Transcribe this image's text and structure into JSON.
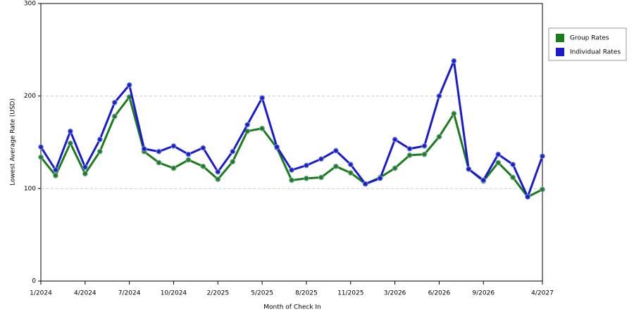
{
  "chart_data": {
    "type": "line",
    "x_label": "Month of Check In",
    "y_label": "Lowest Average Rate (USD)",
    "categories": [
      "1/2024",
      null,
      null,
      "4/2024",
      null,
      null,
      "7/2024",
      null,
      null,
      "10/2024",
      null,
      null,
      "2/2025",
      null,
      null,
      "5/2025",
      null,
      null,
      "8/2025",
      null,
      null,
      "11/2025",
      null,
      null,
      "3/2026",
      null,
      null,
      "6/2026",
      null,
      null,
      "9/2026",
      null,
      null,
      null,
      "4/2027"
    ],
    "series": [
      {
        "name": "Group Rates",
        "color": "#1a7d1a",
        "values": [
          134,
          114,
          149,
          116,
          140,
          178,
          199,
          140,
          128,
          122,
          131,
          124,
          110,
          129,
          162,
          165,
          144,
          109,
          111,
          112,
          124,
          117,
          105,
          112,
          122,
          136,
          137,
          156,
          181,
          121,
          108,
          128,
          112,
          91,
          99
        ]
      },
      {
        "name": "Individual Rates",
        "color": "#1a1ad2",
        "values": [
          145,
          120,
          162,
          123,
          153,
          193,
          212,
          143,
          140,
          146,
          137,
          144,
          118,
          140,
          169,
          198,
          145,
          120,
          125,
          132,
          141,
          126,
          105,
          111,
          153,
          143,
          146,
          200,
          238,
          121,
          109,
          137,
          126,
          91,
          135
        ]
      }
    ],
    "ylim": [
      0,
      300
    ],
    "yticks": [
      0,
      100,
      200,
      300
    ],
    "grid": true,
    "legend": "right"
  }
}
